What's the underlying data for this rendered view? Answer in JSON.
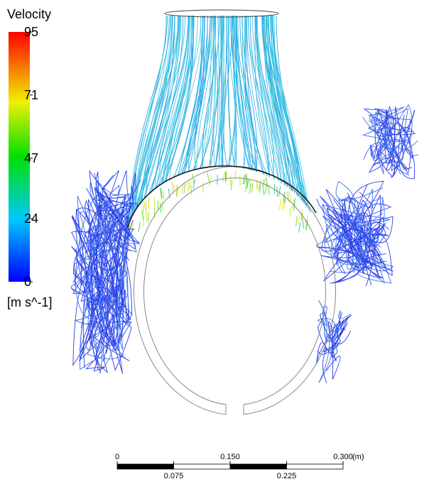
{
  "legend": {
    "title": "Velocity",
    "ticks": [
      95,
      71,
      47,
      24,
      0
    ],
    "unit": "[m s^-1]"
  },
  "scale_bar": {
    "ticks": [
      0,
      0.075,
      {
        "value": 0.15,
        "label": "0.150"
      },
      0.225,
      {
        "value": 0.3,
        "label": "0.300"
      }
    ],
    "unit": "(m)"
  }
}
